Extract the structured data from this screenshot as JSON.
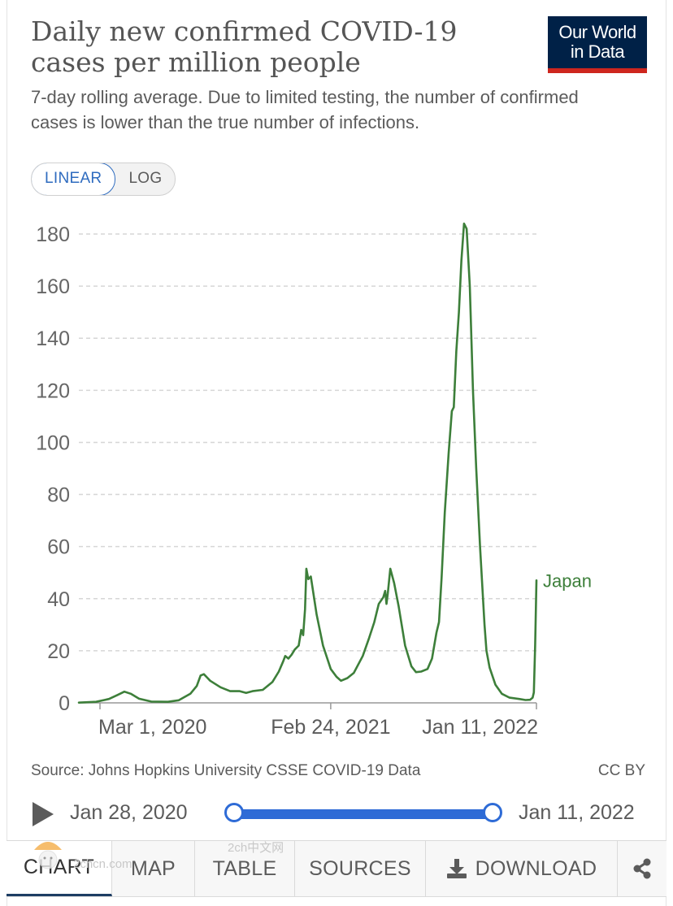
{
  "header": {
    "title": "Daily new confirmed COVID-19 cases per million people",
    "subtitle": "7-day rolling average. Due to limited testing, the number of confirmed cases is lower than the true number of infections.",
    "logo_line1": "Our World",
    "logo_line2": "in Data"
  },
  "scale_toggle": {
    "linear": "LINEAR",
    "log": "LOG",
    "active": "LINEAR"
  },
  "chart_data": {
    "type": "line",
    "title": "Daily new confirmed COVID-19 cases per million people",
    "subtitle": "7-day rolling average. Due to limited testing, the number of confirmed cases is lower than the true number of infections.",
    "xlabel": "",
    "ylabel": "",
    "xlim": [
      "2020-01-28",
      "2022-01-11"
    ],
    "ylim": [
      0,
      180
    ],
    "yticks": [
      0,
      20,
      40,
      60,
      80,
      100,
      120,
      140,
      160,
      180
    ],
    "xticks": [
      {
        "date": "2020-03-01",
        "label": "Mar 1, 2020"
      },
      {
        "date": "2021-02-24",
        "label": "Feb 24, 2021"
      },
      {
        "date": "2022-01-11",
        "label": "Jan 11, 2022"
      }
    ],
    "grid": "horizontal-dashed",
    "series": [
      {
        "name": "Japan",
        "color": "#3d7f3a",
        "points": [
          [
            "2020-01-28",
            0.1
          ],
          [
            "2020-02-24",
            0.4
          ],
          [
            "2020-03-15",
            1.5
          ],
          [
            "2020-03-28",
            3.0
          ],
          [
            "2020-04-08",
            4.3
          ],
          [
            "2020-04-18",
            3.5
          ],
          [
            "2020-05-01",
            1.6
          ],
          [
            "2020-05-20",
            0.5
          ],
          [
            "2020-06-15",
            0.4
          ],
          [
            "2020-07-02",
            1.0
          ],
          [
            "2020-07-20",
            3.5
          ],
          [
            "2020-07-30",
            6.5
          ],
          [
            "2020-08-05",
            10.5
          ],
          [
            "2020-08-10",
            11.0
          ],
          [
            "2020-08-20",
            8.5
          ],
          [
            "2020-09-05",
            6.0
          ],
          [
            "2020-09-20",
            4.5
          ],
          [
            "2020-10-05",
            4.5
          ],
          [
            "2020-10-15",
            3.8
          ],
          [
            "2020-10-25",
            4.5
          ],
          [
            "2020-11-10",
            5.0
          ],
          [
            "2020-11-25",
            8.0
          ],
          [
            "2020-12-05",
            12.0
          ],
          [
            "2020-12-12",
            16.0
          ],
          [
            "2020-12-15",
            18.0
          ],
          [
            "2020-12-20",
            17.0
          ],
          [
            "2020-12-25",
            18.5
          ],
          [
            "2020-12-30",
            20.5
          ],
          [
            "2021-01-05",
            22.0
          ],
          [
            "2021-01-09",
            28.0
          ],
          [
            "2021-01-12",
            26.0
          ],
          [
            "2021-01-15",
            36.0
          ],
          [
            "2021-01-17",
            51.5
          ],
          [
            "2021-01-20",
            47.5
          ],
          [
            "2021-01-24",
            48.5
          ],
          [
            "2021-02-02",
            34.0
          ],
          [
            "2021-02-12",
            22.0
          ],
          [
            "2021-02-24",
            13.0
          ],
          [
            "2021-03-05",
            10.0
          ],
          [
            "2021-03-12",
            8.5
          ],
          [
            "2021-03-22",
            9.5
          ],
          [
            "2021-04-01",
            11.5
          ],
          [
            "2021-04-15",
            18.0
          ],
          [
            "2021-04-25",
            25.0
          ],
          [
            "2021-05-03",
            31.0
          ],
          [
            "2021-05-10",
            38.0
          ],
          [
            "2021-05-17",
            40.5
          ],
          [
            "2021-05-20",
            43.0
          ],
          [
            "2021-05-22",
            38.0
          ],
          [
            "2021-05-24",
            42.0
          ],
          [
            "2021-05-28",
            51.5
          ],
          [
            "2021-06-03",
            46.0
          ],
          [
            "2021-06-10",
            37.0
          ],
          [
            "2021-06-20",
            22.0
          ],
          [
            "2021-06-30",
            14.0
          ],
          [
            "2021-07-07",
            11.8
          ],
          [
            "2021-07-15",
            12.0
          ],
          [
            "2021-07-25",
            13.0
          ],
          [
            "2021-08-01",
            17.0
          ],
          [
            "2021-08-08",
            27.0
          ],
          [
            "2021-08-12",
            31.0
          ],
          [
            "2021-08-16",
            48.0
          ],
          [
            "2021-08-21",
            73.0
          ],
          [
            "2021-08-27",
            96.0
          ],
          [
            "2021-09-01",
            112.0
          ],
          [
            "2021-09-04",
            113.5
          ],
          [
            "2021-09-08",
            135.0
          ],
          [
            "2021-09-12",
            150.0
          ],
          [
            "2021-09-16",
            170.0
          ],
          [
            "2021-09-20",
            184.0
          ],
          [
            "2021-09-24",
            182.0
          ],
          [
            "2021-09-29",
            160.0
          ],
          [
            "2021-10-04",
            120.0
          ],
          [
            "2021-10-09",
            90.0
          ],
          [
            "2021-10-15",
            60.0
          ],
          [
            "2021-10-22",
            30.0
          ],
          [
            "2021-10-25",
            20.0
          ],
          [
            "2021-10-30",
            13.5
          ],
          [
            "2021-11-08",
            7.0
          ],
          [
            "2021-11-18",
            3.5
          ],
          [
            "2021-11-30",
            2.0
          ],
          [
            "2021-12-15",
            1.5
          ],
          [
            "2021-12-25",
            1.1
          ],
          [
            "2022-01-01",
            1.2
          ],
          [
            "2022-01-05",
            2.0
          ],
          [
            "2022-01-07",
            4.0
          ],
          [
            "2022-01-09",
            22.0
          ],
          [
            "2022-01-11",
            47.0
          ]
        ]
      }
    ]
  },
  "footer": {
    "source": "Source: Johns Hopkins University CSSE COVID-19 Data",
    "license": "CC BY"
  },
  "timeline": {
    "start_label": "Jan 28, 2020",
    "end_label": "Jan 11, 2022",
    "start_fraction": 0,
    "end_fraction": 1
  },
  "tabs": [
    {
      "label": "CHART",
      "active": true
    },
    {
      "label": "MAP",
      "active": false
    },
    {
      "label": "TABLE",
      "active": false
    },
    {
      "label": "SOURCES",
      "active": false
    },
    {
      "label": "DOWNLOAD",
      "active": false
    }
  ],
  "watermark": {
    "line1": "2ch中文网",
    "line2": "2chcn.com"
  },
  "icons": {
    "play": "play-icon",
    "download": "download-icon",
    "share": "share-icon"
  }
}
